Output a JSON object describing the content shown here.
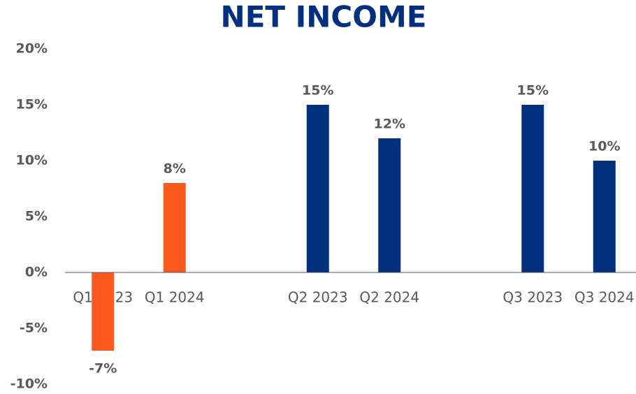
{
  "chart_data": {
    "type": "bar",
    "title": "NET INCOME",
    "categories": [
      "Q1 2023",
      "Q1 2024",
      null,
      "Q2 2023",
      "Q2 2024",
      null,
      "Q3 2023",
      "Q3 2024"
    ],
    "values": [
      -7,
      8,
      null,
      15,
      12,
      null,
      15,
      10
    ],
    "value_labels": [
      "-7%",
      "8%",
      null,
      "15%",
      "12%",
      null,
      "15%",
      "10%"
    ],
    "colors": [
      "#fc5a1e",
      "#fc5a1e",
      null,
      "#002f7f",
      "#002f7f",
      null,
      "#002f7f",
      "#002f7f"
    ],
    "ylim": [
      -10,
      20
    ],
    "yticks": [
      {
        "value": -10,
        "label": "-10%"
      },
      {
        "value": -5,
        "label": "-5%"
      },
      {
        "value": 0,
        "label": "0%"
      },
      {
        "value": 5,
        "label": "5%"
      },
      {
        "value": 10,
        "label": "10%"
      },
      {
        "value": 15,
        "label": "15%"
      },
      {
        "value": 20,
        "label": "20%"
      }
    ],
    "grid": false
  }
}
